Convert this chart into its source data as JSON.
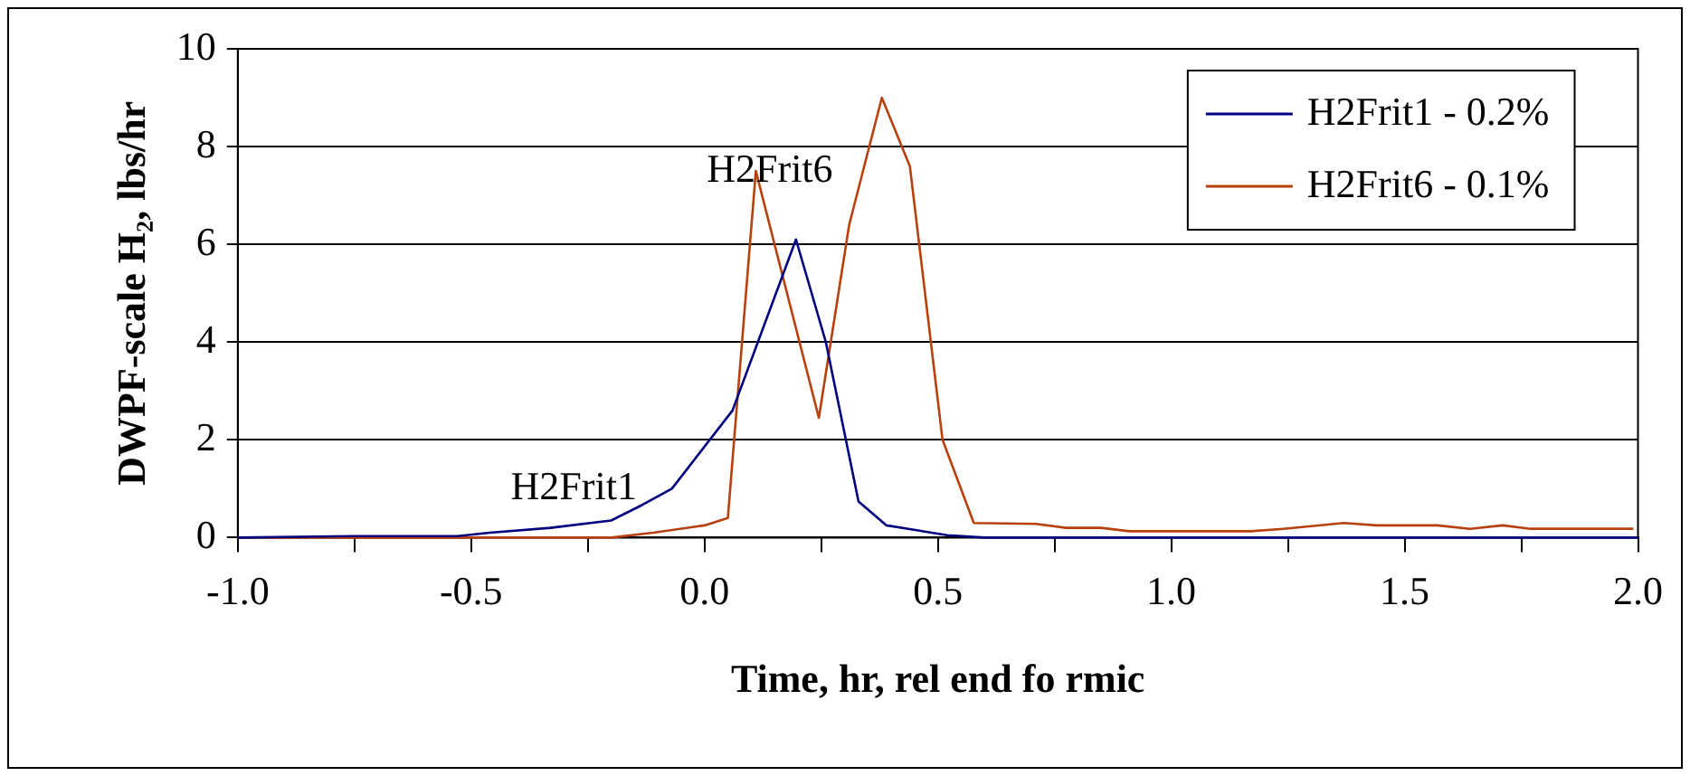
{
  "chart_data": {
    "type": "line",
    "xlabel": "Time, hr, rel end fo rmic",
    "ylabel": "DWPF-scale H₂, lbs/hr",
    "series": [
      {
        "name": "H2Frit1 - 0.2%",
        "color": "#000080",
        "x": [
          -1.0,
          -0.75,
          -0.53,
          -0.46,
          -0.33,
          -0.2,
          -0.135,
          -0.07,
          0.06,
          0.196,
          0.26,
          0.33,
          0.39,
          0.52,
          0.6,
          1.0,
          1.5,
          2.0
        ],
        "values": [
          0,
          0.03,
          0.03,
          0.1,
          0.2,
          0.35,
          0.66,
          1.0,
          2.6,
          6.1,
          4.0,
          0.74,
          0.25,
          0.05,
          0,
          0,
          0,
          0
        ]
      },
      {
        "name": "H2Frit6 - 0.1%",
        "color": "#b8400c",
        "x": [
          -1.0,
          -0.5,
          -0.2,
          -0.11,
          0.0,
          0.05,
          0.11,
          0.245,
          0.31,
          0.38,
          0.44,
          0.51,
          0.577,
          0.71,
          0.775,
          0.85,
          0.91,
          1.17,
          1.24,
          1.37,
          1.44,
          1.57,
          1.64,
          1.71,
          1.77,
          1.99
        ],
        "values": [
          0,
          0,
          0,
          0.1,
          0.25,
          0.4,
          7.5,
          2.45,
          6.4,
          9.0,
          7.6,
          2.0,
          0.3,
          0.28,
          0.2,
          0.2,
          0.13,
          0.13,
          0.18,
          0.3,
          0.25,
          0.25,
          0.18,
          0.25,
          0.18,
          0.18
        ]
      }
    ],
    "xlim": [
      -1.0,
      2.0
    ],
    "xticks": [
      {
        "value": -1.0,
        "label": "-1.0"
      },
      {
        "value": -0.75,
        "label": null
      },
      {
        "value": -0.5,
        "label": "-0.5"
      },
      {
        "value": -0.25,
        "label": null
      },
      {
        "value": 0,
        "label": "0.0"
      },
      {
        "value": 0.25,
        "label": null
      },
      {
        "value": 0.5,
        "label": "0.5"
      },
      {
        "value": 0.75,
        "label": null
      },
      {
        "value": 1.0,
        "label": "1.0"
      },
      {
        "value": 1.25,
        "label": null
      },
      {
        "value": 1.5,
        "label": "1.5"
      },
      {
        "value": 1.75,
        "label": null
      },
      {
        "value": 2.0,
        "label": "2.0"
      }
    ],
    "ylim": [
      0,
      10
    ],
    "yticks": [
      0,
      2,
      4,
      6,
      8,
      10
    ],
    "grid": "y",
    "legend": "top right",
    "marker": "none",
    "line_style": "solid",
    "annotations": [
      "H2Frit6",
      "H2Frit1"
    ]
  }
}
